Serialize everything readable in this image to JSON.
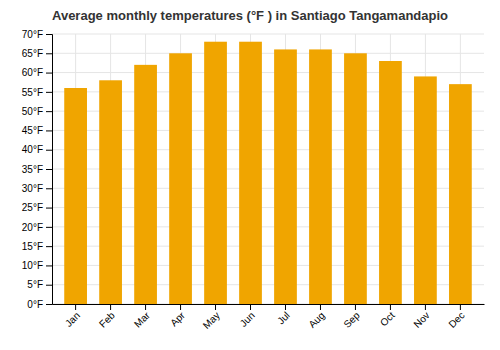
{
  "chart_data": {
    "type": "bar",
    "title": "Average monthly temperatures (°F ) in Santiago Tangamandapio",
    "categories": [
      "Jan",
      "Feb",
      "Mar",
      "Apr",
      "May",
      "Jun",
      "Jul",
      "Aug",
      "Sep",
      "Oct",
      "Nov",
      "Dec"
    ],
    "values": [
      56,
      58,
      62,
      65,
      68,
      68,
      66,
      66,
      65,
      63,
      59,
      57
    ],
    "color": "#F0A500",
    "ylim": [
      0,
      70
    ],
    "yticks": [
      {
        "value": 0,
        "label": "0°F"
      },
      {
        "value": 5,
        "label": "5°F"
      },
      {
        "value": 10,
        "label": "10°F"
      },
      {
        "value": 15,
        "label": "15°F"
      },
      {
        "value": 20,
        "label": "20°F"
      },
      {
        "value": 25,
        "label": "25°F"
      },
      {
        "value": 30,
        "label": "30°F"
      },
      {
        "value": 35,
        "label": "35°F"
      },
      {
        "value": 40,
        "label": "40°F"
      },
      {
        "value": 45,
        "label": "45°F"
      },
      {
        "value": 50,
        "label": "50°F"
      },
      {
        "value": 55,
        "label": "55°F"
      },
      {
        "value": 60,
        "label": "60°F"
      },
      {
        "value": 65,
        "label": "65°F"
      },
      {
        "value": 70,
        "label": "70°F"
      }
    ],
    "grid": true
  }
}
